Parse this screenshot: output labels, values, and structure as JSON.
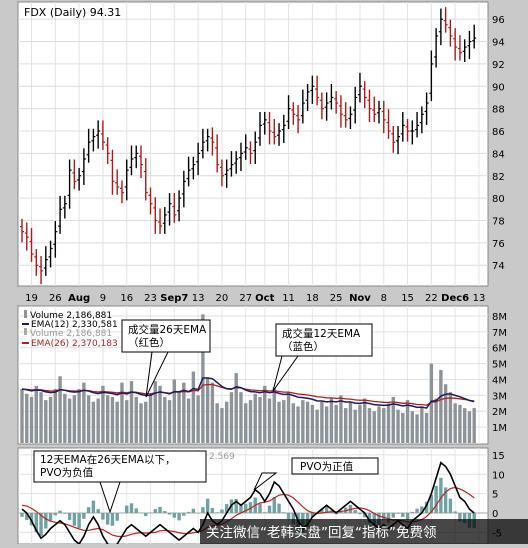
{
  "chart_data": [
    {
      "type": "ohlc",
      "title": "FDX (Daily) 94.31",
      "ylim": [
        72.5,
        97
      ],
      "y_ticks": [
        74,
        76,
        78,
        80,
        82,
        84,
        86,
        88,
        90,
        92,
        94,
        96
      ],
      "x_ticks": [
        {
          "label": "19",
          "pos": 2
        },
        {
          "label": "26",
          "pos": 7
        },
        {
          "label": "Aug",
          "pos": 12,
          "bold": true
        },
        {
          "label": "9",
          "pos": 17
        },
        {
          "label": "16",
          "pos": 22
        },
        {
          "label": "23",
          "pos": 27
        },
        {
          "label": "Sep7",
          "pos": 32,
          "bold": true
        },
        {
          "label": "13",
          "pos": 37
        },
        {
          "label": "20",
          "pos": 42
        },
        {
          "label": "27",
          "pos": 47
        },
        {
          "label": "Oct",
          "pos": 51,
          "bold": true
        },
        {
          "label": "11",
          "pos": 56
        },
        {
          "label": "18",
          "pos": 61
        },
        {
          "label": "25",
          "pos": 66
        },
        {
          "label": "Nov",
          "pos": 71,
          "bold": true
        },
        {
          "label": "8",
          "pos": 76
        },
        {
          "label": "15",
          "pos": 81
        },
        {
          "label": "22",
          "pos": 86
        },
        {
          "label": "Dec6",
          "pos": 91,
          "bold": true
        },
        {
          "label": "13",
          "pos": 96
        }
      ],
      "closes": [
        77.0,
        76.5,
        75.0,
        74.0,
        73.5,
        74.5,
        75.5,
        77.0,
        79.0,
        79.5,
        82.5,
        81.5,
        82.0,
        83.5,
        85.0,
        85.5,
        86.0,
        85.0,
        84.0,
        81.5,
        81.0,
        80.5,
        82.5,
        83.5,
        84.0,
        83.0,
        80.5,
        79.5,
        78.0,
        77.5,
        78.5,
        79.5,
        78.5,
        80.0,
        81.5,
        82.5,
        83.0,
        84.0,
        85.0,
        85.5,
        85.0,
        83.0,
        82.0,
        82.5,
        83.0,
        83.5,
        84.0,
        84.5,
        84.0,
        85.0,
        86.5,
        87.0,
        86.0,
        85.5,
        86.0,
        86.5,
        88.0,
        87.5,
        87.0,
        88.5,
        89.5,
        90.0,
        89.0,
        88.0,
        88.5,
        89.0,
        88.5,
        87.5,
        87.0,
        87.5,
        89.0,
        90.0,
        89.0,
        88.0,
        87.5,
        88.0,
        87.0,
        86.0,
        85.0,
        85.5,
        86.5,
        86.0,
        86.0,
        86.5,
        87.5,
        88.5,
        92.0,
        94.5,
        96.0,
        95.5,
        94.5,
        93.5,
        93.0,
        93.5,
        94.0,
        94.31
      ]
    },
    {
      "type": "volume",
      "ylim": [
        0,
        8.5
      ],
      "y_ticks": [
        "1M",
        "2M",
        "3M",
        "4M",
        "5M",
        "6M",
        "7M",
        "8M"
      ],
      "legend": {
        "volume": "Volume 2,186,881",
        "ema12": "EMA(12) 2,330,581",
        "volume2": "Volume 2,186,881",
        "ema26": "EMA(26) 2,370,183"
      },
      "colors": {
        "bars": "#8d9499",
        "ema12": "#1c1c5e",
        "ema26": "#b02020"
      },
      "volumes_m": [
        3.4,
        3.1,
        2.9,
        3.6,
        3.2,
        2.7,
        2.9,
        3.4,
        4.2,
        3.1,
        2.8,
        3.0,
        3.4,
        3.8,
        3.0,
        2.6,
        2.8,
        3.6,
        3.0,
        2.9,
        2.6,
        3.8,
        2.7,
        3.9,
        2.9,
        2.5,
        2.6,
        3.1,
        3.9,
        3.6,
        2.9,
        2.7,
        4.0,
        3.2,
        3.8,
        2.8,
        4.5,
        3.0,
        8.1,
        4.1,
        3.8,
        2.5,
        2.2,
        2.6,
        3.2,
        4.4,
        3.2,
        2.5,
        2.7,
        3.1,
        2.9,
        3.6,
        2.8,
        3.5,
        2.6,
        2.7,
        3.2,
        2.5,
        2.3,
        2.7,
        2.6,
        2.4,
        2.1,
        2.6,
        2.3,
        2.8,
        2.4,
        3.0,
        2.2,
        2.6,
        2.1,
        2.4,
        2.8,
        2.2,
        2.0,
        2.3,
        2.2,
        2.5,
        2.9,
        2.1,
        1.9,
        2.7,
        2.0,
        1.8,
        2.3,
        1.9,
        5.0,
        2.8,
        4.6,
        3.7,
        3.2,
        2.5,
        2.4,
        2.2,
        2.0,
        2.2
      ]
    },
    {
      "type": "line",
      "name": "PVO",
      "ylim": [
        -8,
        16
      ],
      "y_ticks": [
        15,
        10,
        5,
        0,
        -5
      ],
      "visible_value_fragment": "2.569",
      "colors": {
        "pvo": "#000000",
        "signal": "#c02020",
        "histogram": "#6fa3a3"
      },
      "pvo": [
        1.0,
        0.0,
        -2.0,
        -4.5,
        -6.5,
        -5.5,
        -4.0,
        -3.0,
        -2.0,
        -3.0,
        -5.0,
        -7.0,
        -8.0,
        -6.0,
        -3.0,
        -1.0,
        -3.0,
        -6.0,
        -8.0,
        -9.0,
        -8.0,
        -6.0,
        -4.0,
        -3.0,
        -4.0,
        -5.0,
        -6.0,
        -5.0,
        -4.0,
        -3.0,
        -4.0,
        -5.0,
        -6.0,
        -7.0,
        -6.0,
        -5.0,
        -4.0,
        -5.0,
        -3.0,
        0.0,
        -2.0,
        -3.0,
        -2.0,
        0.0,
        2.0,
        3.0,
        2.0,
        3.0,
        4.0,
        6.0,
        5.0,
        3.0,
        5.0,
        8.0,
        7.0,
        5.0,
        3.0,
        1.0,
        -2.0,
        -4.0,
        -3.0,
        -1.0,
        0.0,
        1.0,
        2.0,
        1.0,
        0.0,
        1.0,
        2.0,
        3.0,
        2.0,
        1.0,
        0.0,
        -2.0,
        -3.0,
        -4.0,
        -3.0,
        -4.0,
        -3.0,
        -2.0,
        -3.0,
        -4.0,
        -2.0,
        -1.0,
        0.0,
        2.0,
        5.0,
        9.0,
        13.0,
        12.0,
        10.0,
        7.0,
        4.0,
        3.0,
        1.0,
        0.0
      ],
      "signal": [
        2.0,
        1.8,
        1.2,
        0.4,
        -0.6,
        -1.5,
        -2.1,
        -2.4,
        -2.6,
        -2.8,
        -3.2,
        -3.7,
        -4.1,
        -4.5,
        -4.5,
        -4.2,
        -4.0,
        -4.3,
        -5.0,
        -5.7,
        -6.0,
        -6.1,
        -5.9,
        -5.5,
        -5.2,
        -5.1,
        -5.2,
        -5.1,
        -5.0,
        -4.6,
        -4.5,
        -4.6,
        -4.8,
        -5.1,
        -5.3,
        -5.3,
        -5.1,
        -4.9,
        -4.5,
        -3.7,
        -3.3,
        -3.2,
        -2.9,
        -2.3,
        -1.5,
        -0.6,
        0.0,
        0.6,
        1.2,
        2.0,
        2.6,
        2.8,
        3.1,
        3.9,
        4.6,
        4.8,
        4.6,
        3.9,
        2.8,
        1.6,
        0.6,
        0.1,
        -0.1,
        0.0,
        0.2,
        0.3,
        0.3,
        0.4,
        0.6,
        0.9,
        1.2,
        1.3,
        1.1,
        0.6,
        -0.1,
        -0.8,
        -1.1,
        -1.5,
        -1.8,
        -1.8,
        -2.0,
        -2.3,
        -2.3,
        -2.1,
        -1.7,
        -0.9,
        0.3,
        2.0,
        3.9,
        5.4,
        6.3,
        6.6,
        6.2,
        5.6,
        4.8,
        3.9
      ]
    }
  ],
  "annotations": {
    "vol26": "成交量26天EMA\n（红色）",
    "vol12": "成交量12天EMA\n（蓝色）",
    "pvo_neg": "12天EMA在26天EMA以下，\nPVO为负值",
    "pvo_pos": "PVO为正值"
  },
  "watermark": "关注微信“老韩实盘”回复“指标”免费领"
}
